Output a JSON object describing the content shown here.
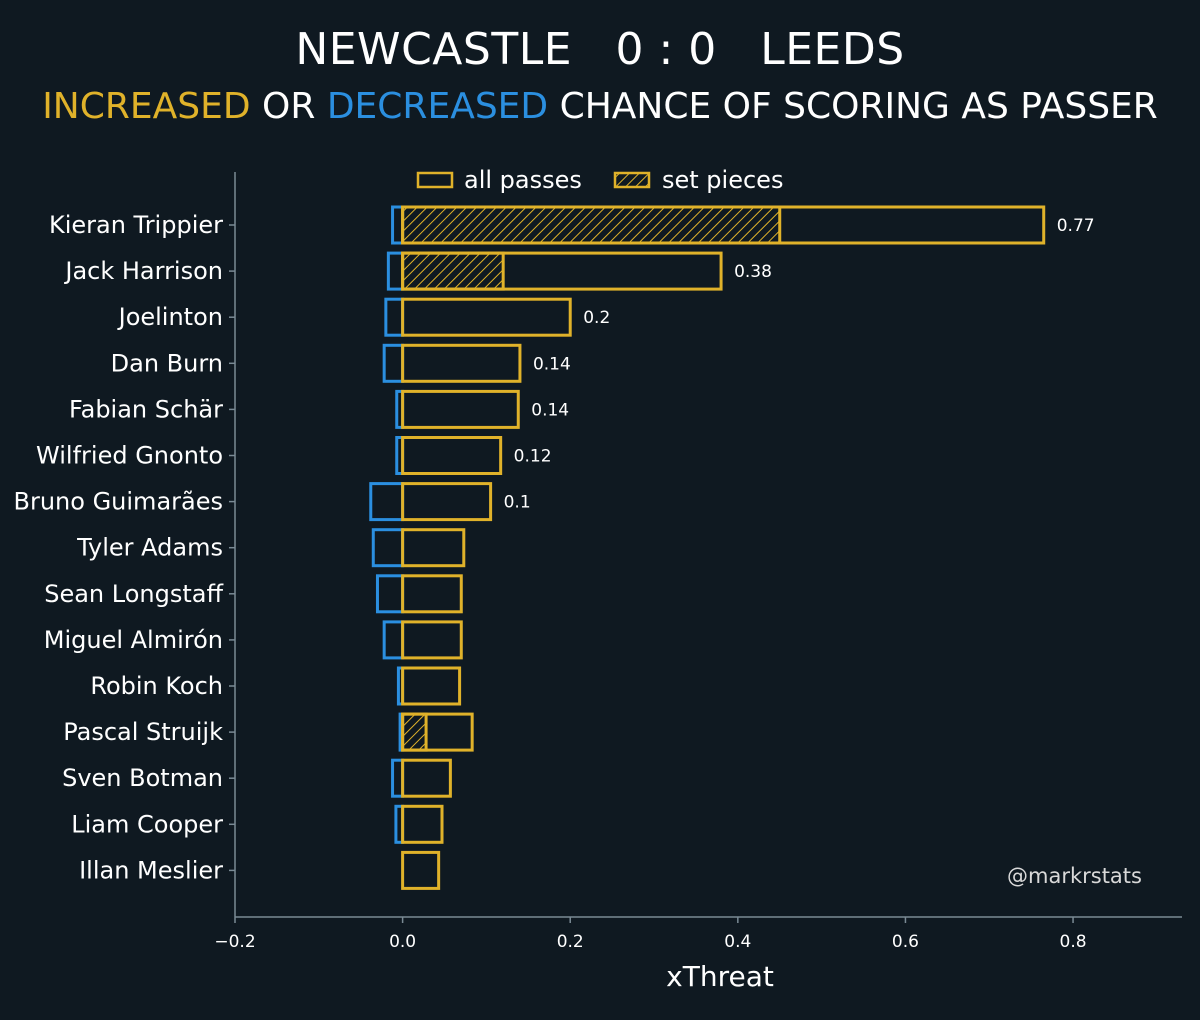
{
  "title": "NEWCASTLE   0 : 0   LEEDS",
  "subtitle": {
    "increased": "INCREASED",
    "or": " OR ",
    "decreased": "DECREASED",
    "rest": " CHANCE OF SCORING AS PASSER"
  },
  "colors": {
    "background": "#0f1921",
    "increased": "#e0b22a",
    "decreased": "#2b8fe0",
    "axis": "#7a8a94"
  },
  "watermark": "@markrstats",
  "chart_data": {
    "type": "bar",
    "orientation": "horizontal",
    "xlabel": "xThreat",
    "xlim": [
      -0.2,
      0.93
    ],
    "xticks": [
      -0.2,
      0.0,
      0.2,
      0.4,
      0.6,
      0.8
    ],
    "xtick_labels": [
      "−0.2",
      "0.0",
      "0.2",
      "0.4",
      "0.6",
      "0.8"
    ],
    "legend": {
      "placement": "top",
      "entries": [
        "all passes",
        "set pieces"
      ]
    },
    "categories": [
      "Kieran Trippier",
      "Jack Harrison",
      "Joelinton",
      "Dan Burn",
      "Fabian Schär",
      "Wilfried Gnonto",
      "Bruno Guimarães",
      "Tyler Adams",
      "Sean Longstaff",
      "Miguel Almirón",
      "Robin Koch",
      "Pascal Struijk",
      "Sven Botman",
      "Liam Cooper",
      "Illan Meslier"
    ],
    "series": [
      {
        "name": "all passes",
        "values": [
          0.765,
          0.38,
          0.2,
          0.14,
          0.138,
          0.117,
          0.105,
          0.073,
          0.07,
          0.07,
          0.068,
          0.083,
          0.057,
          0.047,
          0.043
        ]
      },
      {
        "name": "set pieces",
        "values": [
          0.45,
          0.12,
          0,
          0,
          0,
          0,
          0,
          0,
          0,
          0,
          0,
          0.028,
          0,
          0,
          0
        ]
      },
      {
        "name": "decreased",
        "values": [
          -0.012,
          -0.017,
          -0.02,
          -0.022,
          -0.007,
          -0.007,
          -0.038,
          -0.035,
          -0.03,
          -0.022,
          -0.005,
          -0.003,
          -0.012,
          -0.008,
          0
        ]
      }
    ],
    "value_labels": [
      "0.77",
      "0.38",
      "0.2",
      "0.14",
      "0.14",
      "0.12",
      "0.1",
      "",
      "",
      "",
      "",
      "",
      "",
      "",
      ""
    ]
  }
}
